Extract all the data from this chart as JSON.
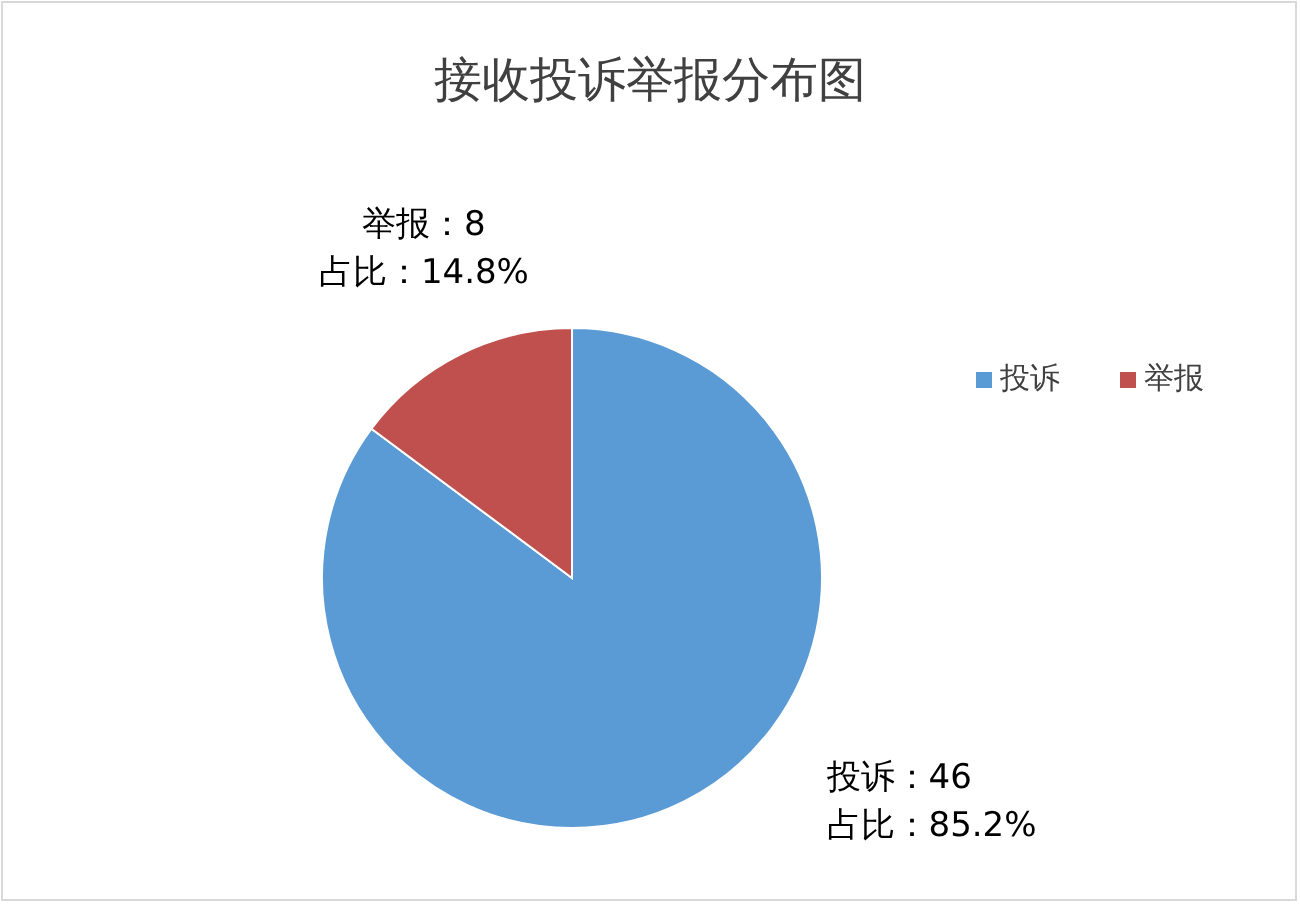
{
  "chart_data": {
    "type": "pie",
    "title": "接收投诉举报分布图",
    "categories": [
      "投诉",
      "举报"
    ],
    "values": [
      46,
      8
    ],
    "colors": [
      "#5b9bd5",
      "#c0504d"
    ],
    "value_labels": [
      "投诉：46\n占比：85.2%",
      "举报：8\n占比：14.8%"
    ],
    "legend": "right"
  }
}
